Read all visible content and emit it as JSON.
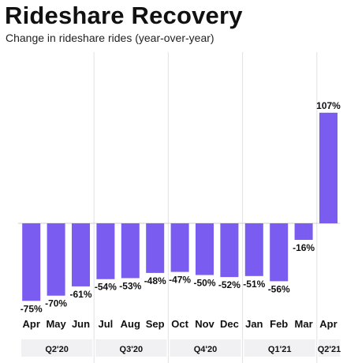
{
  "chart_data": {
    "type": "bar",
    "title": "Rideshare Recovery",
    "subtitle": "Change in rideshare rides (year-over-year)",
    "categories": [
      "Apr",
      "May",
      "Jun",
      "Jul",
      "Aug",
      "Sep",
      "Oct",
      "Nov",
      "Dec",
      "Jan",
      "Feb",
      "Mar",
      "Apr"
    ],
    "values": [
      -75,
      -70,
      -61,
      -54,
      -53,
      -48,
      -47,
      -50,
      -52,
      -51,
      -56,
      -16,
      107
    ],
    "value_labels": [
      "-75%",
      "-70%",
      "-61%",
      "-54%",
      "-53%",
      "-48%",
      "-47%",
      "-50%",
      "-52%",
      "-51%",
      "-56%",
      "-16%",
      "107%"
    ],
    "groups": [
      {
        "label": "Q2'20",
        "months": 3
      },
      {
        "label": "Q3'20",
        "months": 3
      },
      {
        "label": "Q4'20",
        "months": 3
      },
      {
        "label": "Q1'21",
        "months": 3
      },
      {
        "label": "Q2'21",
        "months": 1
      }
    ],
    "bar_color": "#7b5cf0",
    "quarter_band_color": "#f1f1f3",
    "ylim": [
      -80,
      110
    ],
    "grid": false,
    "xlabel": "",
    "ylabel": ""
  }
}
